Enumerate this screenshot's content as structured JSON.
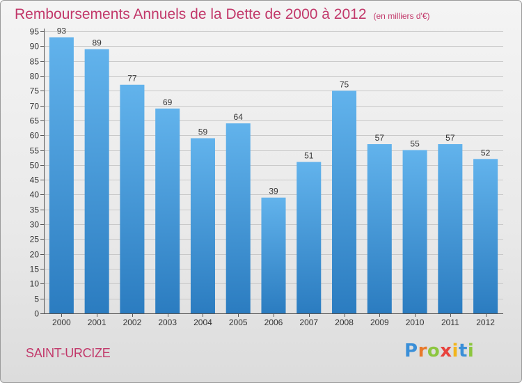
{
  "header": {
    "title": "Remboursements Annuels de la Dette de 2000 à 2012",
    "subtitle": "(en milliers d'€)"
  },
  "footer": {
    "town": "SAINT-URCIZE",
    "logo_letters": [
      "P",
      "r",
      "o",
      "x",
      "i",
      "t",
      "i"
    ],
    "logo_colors": [
      "#3a8fd8",
      "#e8792b",
      "#8cc63f",
      "#e8423d",
      "#f2b51c",
      "#3a8fd8",
      "#8cc63f"
    ]
  },
  "chart_data": {
    "type": "bar",
    "categories": [
      "2000",
      "2001",
      "2002",
      "2003",
      "2004",
      "2005",
      "2006",
      "2007",
      "2008",
      "2009",
      "2010",
      "2011",
      "2012"
    ],
    "values": [
      93,
      89,
      77,
      69,
      59,
      64,
      39,
      51,
      75,
      57,
      55,
      57,
      52
    ],
    "ylim": [
      0,
      95
    ],
    "yticks": [
      0,
      5,
      10,
      15,
      20,
      25,
      30,
      35,
      40,
      45,
      50,
      55,
      60,
      65,
      70,
      75,
      80,
      85,
      90,
      95
    ],
    "grid": true,
    "colors": {
      "bar_top": "#62b3ec",
      "bar_bottom": "#2b7cc0",
      "text": "#333333"
    }
  }
}
